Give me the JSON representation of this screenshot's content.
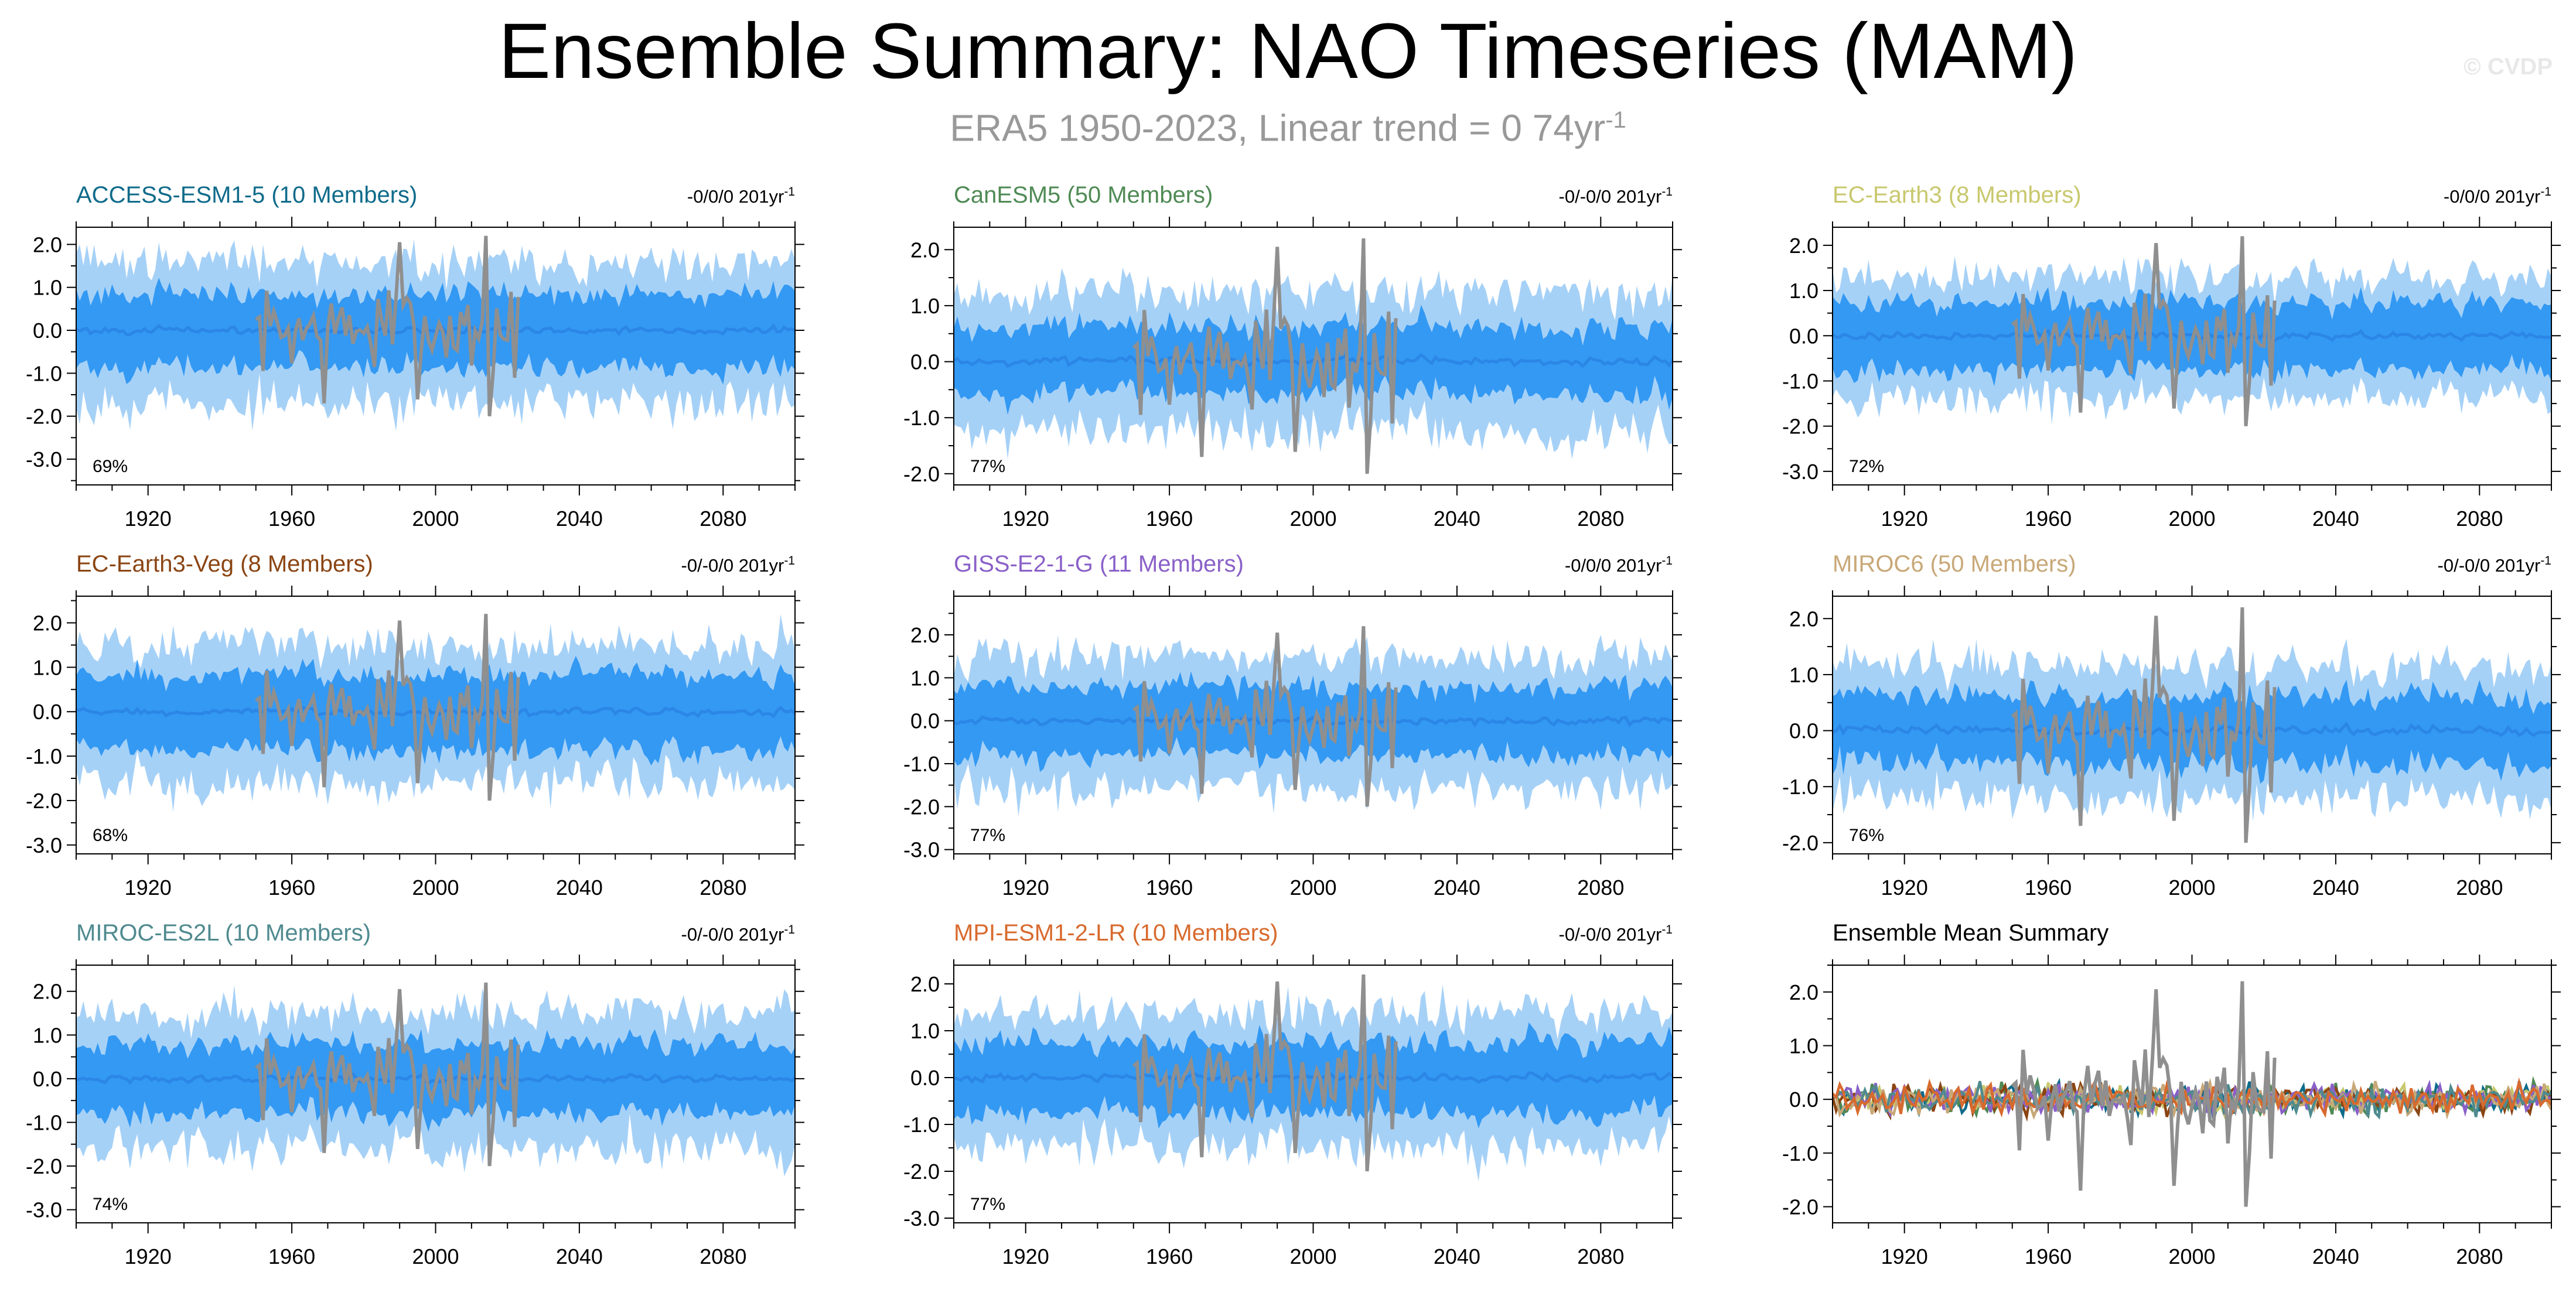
{
  "title": "Ensemble Summary: NAO Timeseries (MAM)",
  "subtitle": {
    "text": "ERA5 1950-2023, Linear trend = 0 74yr",
    "superscript": "-1"
  },
  "watermark": "© CVDP",
  "colors": {
    "outer_band": "#a6d1f7",
    "inner_band": "#3399f3",
    "ensemble_mean": "#2b86e6",
    "observed": "#8f8f8f"
  },
  "chart_data": [
    {
      "type": "area",
      "title": "ACCESS-ESM1-5 (10 Members)",
      "title_color": "#0f6b8a",
      "trend_label": "-0/0/0 201yr",
      "trend_superscript": "-1",
      "percent_label": "69%",
      "xlim": [
        1900,
        2100
      ],
      "ylim": [
        -3.6,
        2.4
      ],
      "yticks": [
        "2.0",
        "1.0",
        "0.0",
        "-1.0",
        "-2.0",
        "-3.0"
      ],
      "xticks": [
        "1920",
        "1960",
        "2000",
        "2040",
        "2080"
      ],
      "series": [
        {
          "name": "",
          "x_range": [
            1900,
            2100
          ],
          "band_outer": 1.6,
          "band_inner": 0.85
        },
        {
          "name": "",
          "x_range": [
            1950,
            2023
          ],
          "observed": true
        }
      ]
    },
    {
      "type": "area",
      "title": "CanESM5 (50 Members)",
      "title_color": "#4f8a55",
      "trend_label": "-0/-0/0 201yr",
      "trend_superscript": "-1",
      "percent_label": "77%",
      "xlim": [
        1900,
        2100
      ],
      "ylim": [
        -2.2,
        2.4
      ],
      "yticks": [
        "2.0",
        "1.0",
        "0.0",
        "-1.0",
        "-2.0"
      ],
      "xticks": [
        "1920",
        "1960",
        "2000",
        "2040",
        "2080"
      ],
      "series": [
        {
          "name": "",
          "x_range": [
            1900,
            2100
          ],
          "band_outer": 1.2,
          "band_inner": 0.6
        },
        {
          "name": "",
          "x_range": [
            1950,
            2023
          ],
          "observed": true
        }
      ]
    },
    {
      "type": "area",
      "title": "EC-Earth3 (8 Members)",
      "title_color": "#c8c86e",
      "trend_label": "-0/0/0 201yr",
      "trend_superscript": "-1",
      "percent_label": "72%",
      "xlim": [
        1900,
        2100
      ],
      "ylim": [
        -3.3,
        2.4
      ],
      "yticks": [
        "2.0",
        "1.0",
        "0.0",
        "-1.0",
        "-2.0",
        "-3.0"
      ],
      "xticks": [
        "1920",
        "1960",
        "2000",
        "2040",
        "2080"
      ],
      "series": [
        {
          "name": "",
          "x_range": [
            1900,
            2100
          ],
          "band_outer": 1.3,
          "band_inner": 0.75
        },
        {
          "name": "",
          "x_range": [
            1950,
            2023
          ],
          "observed": true
        }
      ]
    },
    {
      "type": "area",
      "title": "EC-Earth3-Veg (8 Members)",
      "title_color": "#8b4513",
      "trend_label": "-0/-0/0 201yr",
      "trend_superscript": "-1",
      "percent_label": "68%",
      "xlim": [
        1900,
        2100
      ],
      "ylim": [
        -3.2,
        2.6
      ],
      "yticks": [
        "2.0",
        "1.0",
        "0.0",
        "-1.0",
        "-2.0",
        "-3.0"
      ],
      "xticks": [
        "1920",
        "1960",
        "2000",
        "2040",
        "2080"
      ],
      "series": [
        {
          "name": "",
          "x_range": [
            1900,
            2100
          ],
          "band_outer": 1.5,
          "band_inner": 0.85
        },
        {
          "name": "",
          "x_range": [
            1950,
            2023
          ],
          "observed": true
        }
      ]
    },
    {
      "type": "area",
      "title": "GISS-E2-1-G (11 Members)",
      "title_color": "#8a60c8",
      "trend_label": "-0/0/0 201yr",
      "trend_superscript": "-1",
      "percent_label": "77%",
      "xlim": [
        1900,
        2100
      ],
      "ylim": [
        -3.1,
        2.9
      ],
      "yticks": [
        "2.0",
        "1.0",
        "0.0",
        "-1.0",
        "-2.0",
        "-3.0"
      ],
      "xticks": [
        "1920",
        "1960",
        "2000",
        "2040",
        "2080"
      ],
      "series": [
        {
          "name": "",
          "x_range": [
            1900,
            2100
          ],
          "band_outer": 1.5,
          "band_inner": 0.8
        },
        {
          "name": "",
          "x_range": [
            1950,
            2023
          ],
          "observed": true
        }
      ]
    },
    {
      "type": "area",
      "title": "MIROC6 (50 Members)",
      "title_color": "#c8a878",
      "trend_label": "-0/-0/0 201yr",
      "trend_superscript": "-1",
      "percent_label": "76%",
      "xlim": [
        1900,
        2100
      ],
      "ylim": [
        -2.2,
        2.4
      ],
      "yticks": [
        "2.0",
        "1.0",
        "0.0",
        "-1.0",
        "-2.0"
      ],
      "xticks": [
        "1920",
        "1960",
        "2000",
        "2040",
        "2080"
      ],
      "series": [
        {
          "name": "",
          "x_range": [
            1900,
            2100
          ],
          "band_outer": 1.15,
          "band_inner": 0.6
        },
        {
          "name": "",
          "x_range": [
            1950,
            2023
          ],
          "observed": true
        }
      ]
    },
    {
      "type": "area",
      "title": "MIROC-ES2L (10 Members)",
      "title_color": "#4f8a8f",
      "trend_label": "-0/-0/0 201yr",
      "trend_superscript": "-1",
      "percent_label": "74%",
      "xlim": [
        1900,
        2100
      ],
      "ylim": [
        -3.3,
        2.6
      ],
      "yticks": [
        "2.0",
        "1.0",
        "0.0",
        "-1.0",
        "-2.0",
        "-3.0"
      ],
      "xticks": [
        "1920",
        "1960",
        "2000",
        "2040",
        "2080"
      ],
      "series": [
        {
          "name": "",
          "x_range": [
            1900,
            2100
          ],
          "band_outer": 1.5,
          "band_inner": 0.8
        },
        {
          "name": "",
          "x_range": [
            1950,
            2023
          ],
          "observed": true
        }
      ]
    },
    {
      "type": "area",
      "title": "MPI-ESM1-2-LR (10 Members)",
      "title_color": "#d86a2e",
      "trend_label": "-0/-0/0 201yr",
      "trend_superscript": "-1",
      "percent_label": "77%",
      "xlim": [
        1900,
        2100
      ],
      "ylim": [
        -3.1,
        2.4
      ],
      "yticks": [
        "2.0",
        "1.0",
        "0.0",
        "-1.0",
        "-2.0",
        "-3.0"
      ],
      "xticks": [
        "1920",
        "1960",
        "2000",
        "2040",
        "2080"
      ],
      "series": [
        {
          "name": "",
          "x_range": [
            1900,
            2100
          ],
          "band_outer": 1.4,
          "band_inner": 0.75
        },
        {
          "name": "",
          "x_range": [
            1950,
            2023
          ],
          "observed": true
        }
      ]
    },
    {
      "type": "line",
      "title": "Ensemble Mean Summary",
      "title_color": "#000000",
      "trend_label": "",
      "percent_label": "",
      "xlim": [
        1900,
        2100
      ],
      "ylim": [
        -2.3,
        2.5
      ],
      "yticks": [
        "2.0",
        "1.0",
        "0.0",
        "-1.0",
        "-2.0"
      ],
      "xticks": [
        "1920",
        "1960",
        "2000",
        "2040",
        "2080"
      ],
      "series": [
        {
          "name": "",
          "color": "#0f6b8a",
          "x_range": [
            1900,
            2100
          ]
        },
        {
          "name": "",
          "color": "#4f8a55",
          "x_range": [
            1900,
            2100
          ]
        },
        {
          "name": "",
          "color": "#c8c86e",
          "x_range": [
            1900,
            2100
          ]
        },
        {
          "name": "",
          "color": "#8b4513",
          "x_range": [
            1900,
            2100
          ]
        },
        {
          "name": "",
          "color": "#8a60c8",
          "x_range": [
            1900,
            2100
          ]
        },
        {
          "name": "",
          "color": "#c8a878",
          "x_range": [
            1900,
            2100
          ]
        },
        {
          "name": "",
          "color": "#4f8a8f",
          "x_range": [
            1900,
            2100
          ]
        },
        {
          "name": "",
          "color": "#d86a2e",
          "x_range": [
            1900,
            2100
          ]
        },
        {
          "name": "",
          "color": "#8f8f8f",
          "x_range": [
            1950,
            2023
          ],
          "observed": true
        }
      ]
    }
  ]
}
